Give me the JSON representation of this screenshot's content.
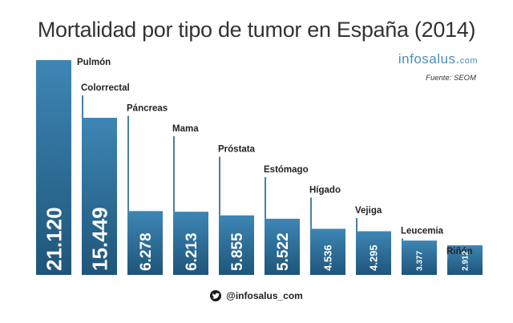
{
  "title": "Mortalidad por tipo de tumor en España (2014)",
  "brand": {
    "name": "infosalus",
    "dot": ".",
    "tld": "com"
  },
  "source": "Fuente: SEOM",
  "footer": {
    "handle": "@infosalus_com"
  },
  "colors": {
    "bar_top": "#3d86b4",
    "bar_bottom": "#1f557a",
    "text": "#222222",
    "brand": "#4a90b8"
  },
  "chart_data": {
    "type": "bar",
    "title": "Mortalidad por tipo de tumor en España (2014)",
    "categories": [
      "Pulmón",
      "Colorrectal",
      "Páncreas",
      "Mama",
      "Próstata",
      "Estómago",
      "Hígado",
      "Vejiga",
      "Leucemia",
      "Riñón"
    ],
    "values": [
      21120,
      15449,
      6278,
      6213,
      5855,
      5522,
      4536,
      4295,
      3377,
      2912
    ],
    "value_labels": [
      "21.120",
      "15.449",
      "6.278",
      "6.213",
      "5.855",
      "5.522",
      "4.536",
      "4.295",
      "3.377",
      "2.912"
    ],
    "xlabel": "",
    "ylabel": "",
    "ylim": [
      0,
      21120
    ],
    "grid": false,
    "legend": "none"
  }
}
